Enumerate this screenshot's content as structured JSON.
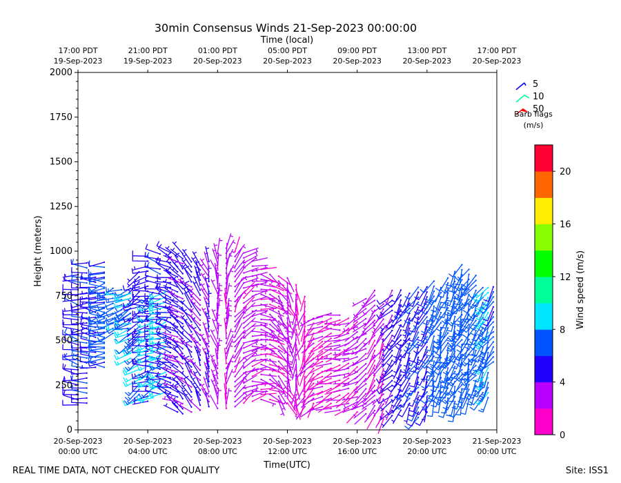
{
  "chart_data": {
    "type": "wind_barb_timeheight",
    "title": "30min Consensus Winds 21-Sep-2023 00:00:00",
    "top_axis_label": "Time (local)",
    "xlabel": "Time(UTC)",
    "ylabel": "Height (meters)",
    "ylim": [
      0,
      2000
    ],
    "y_ticks": [
      0,
      250,
      500,
      750,
      1000,
      1250,
      1500,
      1750,
      2000
    ],
    "x_hours_range": [
      0,
      24
    ],
    "x_ticks": [
      {
        "hour": 0,
        "line1": "20-Sep-2023",
        "line2": "00:00 UTC"
      },
      {
        "hour": 4,
        "line1": "20-Sep-2023",
        "line2": "04:00 UTC"
      },
      {
        "hour": 8,
        "line1": "20-Sep-2023",
        "line2": "08:00 UTC"
      },
      {
        "hour": 12,
        "line1": "20-Sep-2023",
        "line2": "12:00 UTC"
      },
      {
        "hour": 16,
        "line1": "20-Sep-2023",
        "line2": "16:00 UTC"
      },
      {
        "hour": 20,
        "line1": "20-Sep-2023",
        "line2": "20:00 UTC"
      },
      {
        "hour": 24,
        "line1": "21-Sep-2023",
        "line2": "00:00 UTC"
      }
    ],
    "top_ticks": [
      {
        "hour": 0,
        "line1": "17:00 PDT",
        "line2": "19-Sep-2023"
      },
      {
        "hour": 4,
        "line1": "21:00 PDT",
        "line2": "19-Sep-2023"
      },
      {
        "hour": 8,
        "line1": "01:00 PDT",
        "line2": "20-Sep-2023"
      },
      {
        "hour": 12,
        "line1": "05:00 PDT",
        "line2": "20-Sep-2023"
      },
      {
        "hour": 16,
        "line1": "09:00 PDT",
        "line2": "20-Sep-2023"
      },
      {
        "hour": 20,
        "line1": "13:00 PDT",
        "line2": "20-Sep-2023"
      },
      {
        "hour": 24,
        "line1": "17:00 PDT",
        "line2": "20-Sep-2023"
      }
    ],
    "barb_legend": {
      "title_line1": "Barb flags",
      "title_line2": "(m/s)",
      "items": [
        {
          "label": "5",
          "color": "#0000ff"
        },
        {
          "label": "10",
          "color": "#00ff99"
        },
        {
          "label": "50",
          "color": "#ff0000"
        }
      ]
    },
    "colorbar": {
      "label": "Wind speed (m/s)",
      "range": [
        0,
        22
      ],
      "ticks": [
        0,
        4,
        8,
        12,
        16,
        20
      ],
      "colors": [
        "#ff00cc",
        "#bb00ff",
        "#2200ff",
        "#0055ff",
        "#00e5ff",
        "#00ff99",
        "#00ff00",
        "#88ff00",
        "#ffee00",
        "#ff6600",
        "#ff0033"
      ]
    },
    "columns": [
      {
        "t": 0.0,
        "bot": 140,
        "top": 880,
        "spd": 5.5,
        "dir": 280
      },
      {
        "t": 0.5,
        "bot": 150,
        "top": 950,
        "spd": 5.8,
        "dir": 270
      },
      {
        "t": 1.0,
        "bot": 350,
        "top": 880,
        "spd": 5.5,
        "dir": 280
      },
      {
        "t": 1.5,
        "bot": 350,
        "top": 950,
        "spd": 6.0,
        "dir": 270
      },
      {
        "t": 1.5,
        "bot": 400,
        "top": 890,
        "spd": 7.0,
        "dir": 250
      },
      {
        "t": 2.0,
        "bot": 540,
        "top": 800,
        "spd": 7.5,
        "dir": 250
      },
      {
        "t": 2.5,
        "bot": 560,
        "top": 810,
        "spd": 7.5,
        "dir": 255
      },
      {
        "t": 3.0,
        "bot": 540,
        "top": 800,
        "spd": 7.0,
        "dir": 250
      },
      {
        "t": 3.0,
        "bot": 400,
        "top": 780,
        "spd": 8.2,
        "dir": 245
      },
      {
        "t": 3.5,
        "bot": 520,
        "top": 890,
        "spd": 5.0,
        "dir": 240
      },
      {
        "t": 3.5,
        "bot": 170,
        "top": 540,
        "spd": 8.3,
        "dir": 240
      },
      {
        "t": 4.0,
        "bot": 160,
        "top": 990,
        "spd": 5.0,
        "dir": 260
      },
      {
        "t": 4.3,
        "bot": 180,
        "top": 790,
        "spd": 8.5,
        "dir": 240
      },
      {
        "t": 4.7,
        "bot": 200,
        "top": 1000,
        "spd": 5.5,
        "dir": 280
      },
      {
        "t": 5.0,
        "bot": 210,
        "top": 780,
        "spd": 8.4,
        "dir": 250
      },
      {
        "t": 5.3,
        "bot": 180,
        "top": 1000,
        "spd": 5.2,
        "dir": 290
      },
      {
        "t": 5.7,
        "bot": 100,
        "top": 980,
        "spd": 4.5,
        "dir": 300
      },
      {
        "t": 6.0,
        "bot": 90,
        "top": 990,
        "spd": 4.3,
        "dir": 310
      },
      {
        "t": 6.5,
        "bot": 100,
        "top": 960,
        "spd": 4.6,
        "dir": 320
      },
      {
        "t": 7.0,
        "bot": 110,
        "top": 930,
        "spd": 4.2,
        "dir": 330
      },
      {
        "t": 7.5,
        "bot": 130,
        "top": 950,
        "spd": 3.8,
        "dir": 340
      },
      {
        "t": 8.0,
        "bot": 120,
        "top": 990,
        "spd": 3.2,
        "dir": 350
      },
      {
        "t": 8.5,
        "bot": 120,
        "top": 1030,
        "spd": 2.6,
        "dir": 10
      },
      {
        "t": 9.0,
        "bot": 130,
        "top": 1010,
        "spd": 2.3,
        "dir": 30
      },
      {
        "t": 9.5,
        "bot": 150,
        "top": 990,
        "spd": 2.5,
        "dir": 60
      },
      {
        "t": 10.0,
        "bot": 160,
        "top": 960,
        "spd": 2.6,
        "dir": 80
      },
      {
        "t": 10.5,
        "bot": 170,
        "top": 920,
        "spd": 2.4,
        "dir": 100
      },
      {
        "t": 11.0,
        "bot": 170,
        "top": 880,
        "spd": 2.2,
        "dir": 120
      },
      {
        "t": 11.5,
        "bot": 160,
        "top": 880,
        "spd": 2.4,
        "dir": 140
      },
      {
        "t": 12.0,
        "bot": 150,
        "top": 870,
        "spd": 2.5,
        "dir": 160
      },
      {
        "t": 12.5,
        "bot": 140,
        "top": 820,
        "spd": 2.1,
        "dir": 180
      },
      {
        "t": 13.0,
        "bot": 130,
        "top": 760,
        "spd": 2.0,
        "dir": 200
      },
      {
        "t": 13.5,
        "bot": 120,
        "top": 650,
        "spd": 1.8,
        "dir": 220
      },
      {
        "t": 14.0,
        "bot": 130,
        "top": 650,
        "spd": 1.6,
        "dir": 240
      },
      {
        "t": 14.5,
        "bot": 120,
        "top": 660,
        "spd": 1.9,
        "dir": 250
      },
      {
        "t": 15.0,
        "bot": 110,
        "top": 660,
        "spd": 2.0,
        "dir": 260
      },
      {
        "t": 15.5,
        "bot": 120,
        "top": 640,
        "spd": 2.1,
        "dir": 250
      },
      {
        "t": 16.0,
        "bot": 100,
        "top": 640,
        "spd": 2.4,
        "dir": 240
      },
      {
        "t": 16.5,
        "bot": 90,
        "top": 750,
        "spd": 2.6,
        "dir": 230
      },
      {
        "t": 17.0,
        "bot": 80,
        "top": 780,
        "spd": 2.4,
        "dir": 220
      },
      {
        "t": 17.5,
        "bot": 60,
        "top": 720,
        "spd": 2.3,
        "dir": 210
      },
      {
        "t": 18.0,
        "bot": 80,
        "top": 780,
        "spd": 4.5,
        "dir": 220
      },
      {
        "t": 18.5,
        "bot": 110,
        "top": 790,
        "spd": 5.0,
        "dir": 215
      },
      {
        "t": 19.0,
        "bot": 120,
        "top": 780,
        "spd": 5.5,
        "dir": 210
      },
      {
        "t": 19.5,
        "bot": 70,
        "top": 810,
        "spd": 6.2,
        "dir": 210
      },
      {
        "t": 20.0,
        "bot": 100,
        "top": 820,
        "spd": 5.5,
        "dir": 205
      },
      {
        "t": 20.4,
        "bot": 160,
        "top": 840,
        "spd": 6.8,
        "dir": 205
      },
      {
        "t": 20.8,
        "bot": 180,
        "top": 820,
        "spd": 7.0,
        "dir": 200
      },
      {
        "t": 21.2,
        "bot": 150,
        "top": 850,
        "spd": 6.8,
        "dir": 200
      },
      {
        "t": 21.6,
        "bot": 130,
        "top": 900,
        "spd": 7.2,
        "dir": 200
      },
      {
        "t": 22.0,
        "bot": 140,
        "top": 940,
        "spd": 7.0,
        "dir": 205
      },
      {
        "t": 22.4,
        "bot": 170,
        "top": 910,
        "spd": 7.1,
        "dir": 205
      },
      {
        "t": 22.8,
        "bot": 220,
        "top": 880,
        "spd": 7.0,
        "dir": 210
      },
      {
        "t": 23.2,
        "bot": 180,
        "top": 800,
        "spd": 6.8,
        "dir": 210
      },
      {
        "t": 23.5,
        "bot": 180,
        "top": 800,
        "spd": 8.2,
        "dir": 210
      },
      {
        "t": 23.8,
        "bot": 380,
        "top": 800,
        "spd": 6.5,
        "dir": 215
      }
    ]
  },
  "footer": {
    "left": "REAL TIME DATA, NOT CHECKED FOR QUALITY",
    "right": "Site: ISS1"
  }
}
